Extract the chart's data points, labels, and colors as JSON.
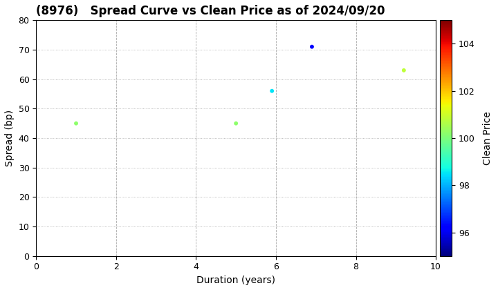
{
  "title": "(8976)   Spread Curve vs Clean Price as of 2024/09/20",
  "xlabel": "Duration (years)",
  "ylabel": "Spread (bp)",
  "colorbar_label": "Clean Price",
  "xlim": [
    0,
    10
  ],
  "ylim": [
    0,
    80
  ],
  "xticks": [
    0,
    2,
    4,
    6,
    8,
    10
  ],
  "yticks": [
    0,
    10,
    20,
    30,
    40,
    50,
    60,
    70,
    80
  ],
  "colorbar_min": 95,
  "colorbar_max": 105,
  "colorbar_ticks": [
    96,
    98,
    100,
    102,
    104
  ],
  "points": [
    {
      "duration": 1.0,
      "spread": 45,
      "price": 100.2
    },
    {
      "duration": 5.0,
      "spread": 45,
      "price": 100.2
    },
    {
      "duration": 5.9,
      "spread": 56,
      "price": 98.5
    },
    {
      "duration": 6.9,
      "spread": 71,
      "price": 96.2
    },
    {
      "duration": 9.2,
      "spread": 63,
      "price": 100.8
    }
  ],
  "background_color": "#ffffff",
  "grid_color_h": "#aaaaaa",
  "grid_color_v": "#aaaaaa",
  "title_fontsize": 12,
  "axis_fontsize": 10,
  "marker_size": 18
}
